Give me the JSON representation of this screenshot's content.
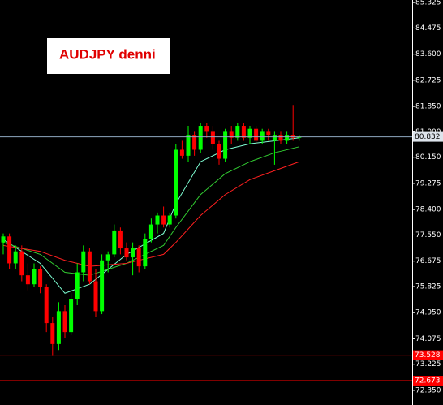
{
  "chart_data": {
    "type": "candlestick",
    "title": "AUDJPY denni",
    "up_color": "#00ff00",
    "down_color": "#ff0000",
    "open": [
      77.3,
      77.5,
      76.6,
      77.0,
      76.2,
      75.9,
      76.4,
      75.8,
      74.6,
      73.9,
      75.0,
      74.3,
      75.4,
      76.3,
      77.0,
      76.0,
      75.0,
      76.7,
      76.9,
      77.7,
      77.1,
      76.8,
      77.1,
      76.5,
      77.4,
      77.9,
      78.2,
      77.9,
      78.2,
      80.4,
      80.2,
      80.9,
      80.4,
      81.2,
      81.0,
      80.6,
      80.1,
      81.0,
      80.8,
      81.2,
      80.8,
      81.1,
      80.7,
      81.0,
      80.7,
      80.9,
      80.7,
      80.9,
      80.8
    ],
    "high": [
      77.6,
      77.6,
      77.2,
      77.2,
      76.6,
      76.6,
      76.5,
      75.9,
      74.8,
      75.3,
      75.2,
      75.6,
      76.6,
      77.2,
      77.1,
      76.4,
      76.9,
      77.0,
      77.9,
      77.8,
      77.3,
      77.3,
      77.2,
      77.6,
      78.1,
      78.3,
      78.5,
      78.3,
      80.6,
      80.7,
      81.2,
      81.0,
      81.3,
      81.3,
      81.2,
      80.7,
      81.1,
      81.2,
      81.3,
      81.3,
      81.2,
      81.2,
      81.1,
      81.1,
      81.0,
      81.0,
      81.0,
      81.9,
      80.9
    ],
    "low": [
      76.9,
      76.4,
      76.4,
      76.0,
      75.7,
      75.8,
      75.6,
      74.3,
      73.5,
      73.7,
      74.1,
      74.2,
      75.2,
      76.0,
      75.9,
      74.8,
      74.9,
      76.3,
      76.8,
      76.9,
      76.7,
      76.2,
      76.3,
      76.4,
      77.3,
      77.6,
      77.8,
      77.8,
      78.1,
      80.1,
      80.0,
      80.2,
      80.3,
      80.8,
      80.4,
      79.9,
      80.0,
      80.6,
      80.7,
      80.7,
      80.6,
      80.6,
      80.6,
      80.7,
      79.9,
      80.6,
      80.6,
      80.7,
      80.7
    ],
    "close": [
      77.5,
      76.6,
      77.0,
      76.2,
      75.9,
      76.4,
      75.8,
      74.6,
      73.9,
      75.0,
      74.3,
      75.4,
      76.3,
      77.0,
      76.0,
      75.0,
      76.7,
      76.9,
      77.7,
      77.1,
      76.8,
      77.1,
      76.5,
      77.4,
      77.9,
      78.2,
      77.9,
      78.2,
      80.4,
      80.2,
      80.9,
      80.4,
      81.2,
      81.0,
      80.6,
      80.1,
      81.0,
      80.8,
      81.2,
      80.8,
      81.1,
      80.7,
      81.0,
      80.9,
      80.9,
      80.7,
      80.9,
      80.8,
      80.83
    ],
    "series": [
      {
        "color": "#7fffd4",
        "x": [
          0,
          6,
          10,
          14,
          20,
          26,
          28,
          32,
          36,
          40,
          44,
          48
        ],
        "values": [
          77.4,
          76.6,
          75.6,
          75.9,
          76.9,
          77.6,
          78.6,
          80.0,
          80.4,
          80.6,
          80.7,
          80.8
        ]
      },
      {
        "color": "#32cd32",
        "x": [
          0,
          6,
          10,
          14,
          20,
          26,
          28,
          32,
          36,
          40,
          44,
          48
        ],
        "values": [
          77.3,
          76.9,
          76.3,
          76.2,
          76.6,
          77.2,
          77.8,
          78.9,
          79.6,
          80.0,
          80.3,
          80.5
        ]
      },
      {
        "color": "#ff2020",
        "x": [
          0,
          6,
          10,
          14,
          20,
          26,
          28,
          32,
          36,
          40,
          44,
          48
        ],
        "values": [
          77.2,
          77.0,
          76.7,
          76.5,
          76.6,
          76.9,
          77.3,
          78.2,
          78.9,
          79.4,
          79.7,
          80.0
        ]
      }
    ],
    "price_lines": [
      {
        "price": 80.832,
        "color": "#8fa8c0"
      },
      {
        "price": 73.528,
        "color": "#ff0000"
      },
      {
        "price": 72.673,
        "color": "#ff0000"
      }
    ],
    "ylim": [
      71.86,
      85.41
    ],
    "yticks": [
      85.325,
      84.475,
      {
        "value": 83.6,
        "label": "83.600"
      },
      82.725,
      {
        "value": 81.85,
        "label": "81.850"
      },
      {
        "value": 81.0,
        "label": "81.000"
      },
      {
        "value": 80.15,
        "label": "80.150"
      },
      79.275,
      {
        "value": 78.4,
        "label": "78.400"
      },
      {
        "value": 77.55,
        "label": "77.550"
      },
      76.675,
      75.825,
      {
        "value": 74.95,
        "label": "74.950"
      },
      74.075,
      73.225,
      {
        "value": 72.35,
        "label": "72.350"
      }
    ]
  }
}
